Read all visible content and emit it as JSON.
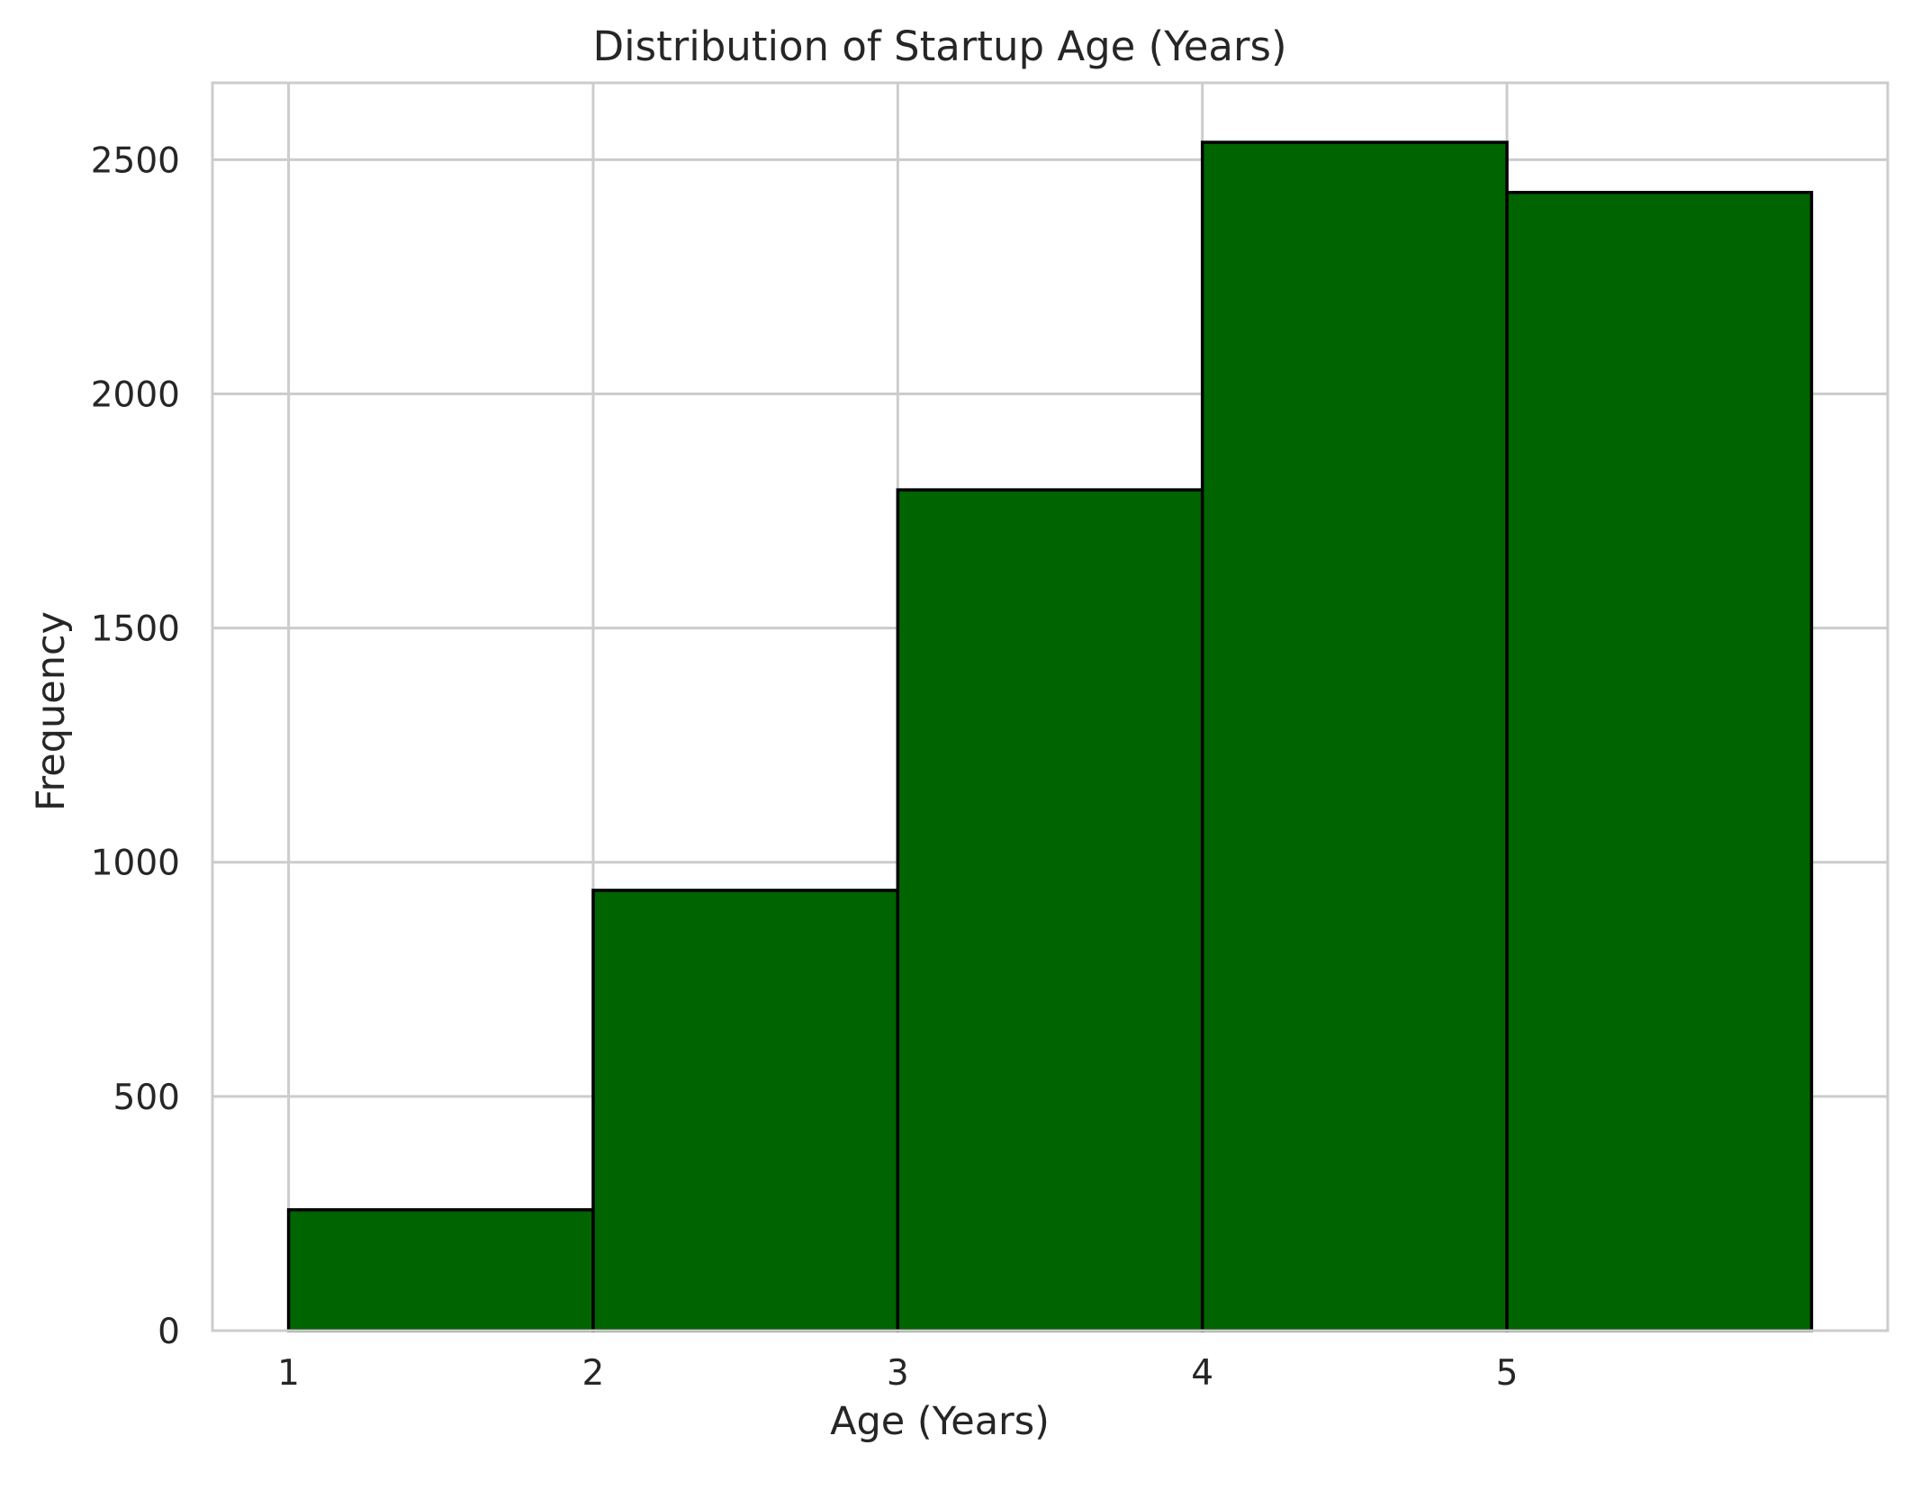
{
  "chart_data": {
    "type": "bar",
    "subtype": "histogram",
    "title": "Distribution of Startup Age (Years)",
    "xlabel": "Age (Years)",
    "ylabel": "Frequency",
    "bins": [
      {
        "start": 1,
        "end": 2,
        "value": 258
      },
      {
        "start": 2,
        "end": 3,
        "value": 940
      },
      {
        "start": 3,
        "end": 4,
        "value": 1795
      },
      {
        "start": 4,
        "end": 5,
        "value": 2537
      },
      {
        "start": 5,
        "end": 6,
        "value": 2430
      }
    ],
    "xticks": [
      1,
      2,
      3,
      4,
      5
    ],
    "yticks": [
      0,
      500,
      1000,
      1500,
      2000,
      2500
    ],
    "xlim": [
      0.75,
      6.25
    ],
    "ylim": [
      0,
      2664
    ],
    "grid": true,
    "bar_color": "#006400",
    "edge_color": "#000000",
    "grid_color": "#cccccc",
    "text_color": "#262626"
  }
}
